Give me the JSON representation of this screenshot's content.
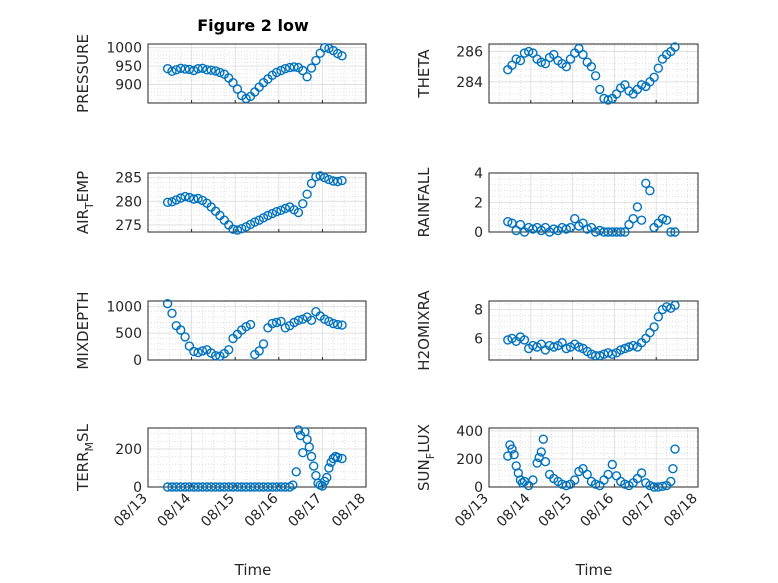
{
  "figure": {
    "title": "Figure 2 low"
  },
  "colors": {
    "marker": "#0072bd",
    "axis": "#262626",
    "grid": "#dcdcdc"
  },
  "chart_data": [
    {
      "type": "scatter",
      "ylabel_main": "PRESSURE",
      "ylabel_sub": "",
      "xlim": [
        13,
        18
      ],
      "ylim": [
        850,
        1010
      ],
      "yticks": [
        900,
        950,
        1000
      ],
      "xticks": [
        13,
        14,
        15,
        16,
        17,
        18
      ],
      "x": [
        13.45,
        13.55,
        13.65,
        13.75,
        13.85,
        13.95,
        14.05,
        14.15,
        14.25,
        14.35,
        14.45,
        14.55,
        14.65,
        14.75,
        14.85,
        14.95,
        15.05,
        15.15,
        15.25,
        15.35,
        15.45,
        15.55,
        15.65,
        15.75,
        15.85,
        15.95,
        16.05,
        16.15,
        16.25,
        16.35,
        16.45,
        16.55,
        16.65,
        16.75,
        16.85,
        16.95,
        17.05,
        17.15,
        17.25,
        17.35,
        17.45
      ],
      "y": [
        943,
        936,
        940,
        944,
        942,
        941,
        938,
        943,
        944,
        940,
        939,
        937,
        933,
        928,
        918,
        905,
        888,
        870,
        862,
        868,
        880,
        893,
        905,
        915,
        925,
        933,
        938,
        943,
        946,
        948,
        946,
        938,
        921,
        945,
        965,
        985,
        1000,
        998,
        992,
        984,
        978
      ]
    },
    {
      "type": "scatter",
      "ylabel_main": "THETA",
      "ylabel_sub": "",
      "xlim": [
        13,
        18
      ],
      "ylim": [
        282.6,
        286.5
      ],
      "yticks": [
        284,
        286
      ],
      "xticks": [
        13,
        14,
        15,
        16,
        17,
        18
      ],
      "x": [
        13.45,
        13.55,
        13.65,
        13.75,
        13.85,
        13.95,
        14.05,
        14.15,
        14.25,
        14.35,
        14.45,
        14.55,
        14.65,
        14.75,
        14.85,
        14.95,
        15.05,
        15.15,
        15.25,
        15.35,
        15.45,
        15.55,
        15.65,
        15.75,
        15.85,
        15.95,
        16.05,
        16.15,
        16.25,
        16.35,
        16.45,
        16.55,
        16.65,
        16.75,
        16.85,
        16.95,
        17.05,
        17.15,
        17.25,
        17.35,
        17.45
      ],
      "y": [
        284.8,
        285.1,
        285.5,
        285.4,
        285.9,
        286.0,
        285.9,
        285.5,
        285.3,
        285.2,
        285.6,
        285.8,
        285.4,
        285.2,
        285.0,
        285.5,
        285.9,
        286.2,
        285.8,
        285.3,
        285.0,
        284.4,
        283.5,
        282.9,
        282.8,
        282.9,
        283.2,
        283.6,
        283.8,
        283.4,
        283.2,
        283.5,
        283.8,
        283.7,
        284.0,
        284.3,
        284.9,
        285.5,
        285.8,
        286.0,
        286.3
      ]
    },
    {
      "type": "scatter",
      "ylabel_main": "AIR",
      "ylabel_sub": "T",
      "ylabel_rest": "EMP",
      "xlim": [
        13,
        18
      ],
      "ylim": [
        273.5,
        286
      ],
      "yticks": [
        275,
        280,
        285
      ],
      "xticks": [
        13,
        14,
        15,
        16,
        17,
        18
      ],
      "x": [
        13.45,
        13.55,
        13.65,
        13.75,
        13.85,
        13.95,
        14.05,
        14.15,
        14.25,
        14.35,
        14.45,
        14.55,
        14.65,
        14.75,
        14.85,
        14.95,
        15.05,
        15.15,
        15.25,
        15.35,
        15.45,
        15.55,
        15.65,
        15.75,
        15.85,
        15.95,
        16.05,
        16.15,
        16.25,
        16.35,
        16.45,
        16.55,
        16.65,
        16.75,
        16.85,
        16.95,
        17.05,
        17.15,
        17.25,
        17.35,
        17.45
      ],
      "y": [
        279.8,
        279.9,
        280.3,
        280.7,
        281.0,
        280.8,
        280.5,
        280.6,
        280.2,
        279.6,
        278.8,
        277.9,
        277.0,
        276.0,
        275.0,
        274.1,
        273.9,
        274.2,
        274.6,
        275.1,
        275.6,
        276.0,
        276.5,
        277.0,
        277.4,
        277.8,
        278.1,
        278.5,
        278.8,
        278.2,
        277.6,
        279.5,
        281.5,
        283.8,
        285.2,
        285.4,
        285.0,
        284.6,
        284.3,
        284.2,
        284.4
      ]
    },
    {
      "type": "scatter",
      "ylabel_main": "RAINFALL",
      "ylabel_sub": "",
      "xlim": [
        13,
        18
      ],
      "ylim": [
        0,
        4
      ],
      "yticks": [
        0,
        2,
        4
      ],
      "xticks": [
        13,
        14,
        15,
        16,
        17,
        18
      ],
      "x": [
        13.45,
        13.55,
        13.65,
        13.75,
        13.85,
        13.95,
        14.05,
        14.15,
        14.25,
        14.35,
        14.45,
        14.55,
        14.65,
        14.75,
        14.85,
        14.95,
        15.05,
        15.15,
        15.25,
        15.35,
        15.45,
        15.55,
        15.65,
        15.75,
        15.85,
        15.95,
        16.05,
        16.15,
        16.25,
        16.35,
        16.45,
        16.55,
        16.65,
        16.75,
        16.85,
        16.95,
        17.05,
        17.15,
        17.25,
        17.35,
        17.45
      ],
      "y": [
        0.7,
        0.6,
        0.1,
        0.5,
        0.0,
        0.3,
        0.2,
        0.3,
        0.1,
        0.3,
        0.0,
        0.2,
        0.1,
        0.3,
        0.2,
        0.3,
        0.9,
        0.4,
        0.6,
        0.2,
        0.3,
        0.0,
        0.1,
        0.0,
        0.0,
        0.0,
        0.0,
        0.0,
        0.0,
        0.5,
        0.9,
        1.7,
        0.8,
        3.3,
        2.8,
        0.3,
        0.6,
        0.9,
        0.8,
        0.0,
        0.0
      ]
    },
    {
      "type": "scatter",
      "ylabel_main": "MIXDEPTH",
      "ylabel_sub": "",
      "xlim": [
        13,
        18
      ],
      "ylim": [
        0,
        1100
      ],
      "yticks": [
        0,
        500,
        1000
      ],
      "xticks": [
        13,
        14,
        15,
        16,
        17,
        18
      ],
      "x": [
        13.45,
        13.55,
        13.65,
        13.75,
        13.85,
        13.95,
        14.05,
        14.15,
        14.25,
        14.35,
        14.45,
        14.55,
        14.65,
        14.75,
        14.85,
        14.95,
        15.05,
        15.15,
        15.25,
        15.35,
        15.45,
        15.55,
        15.65,
        15.75,
        15.85,
        15.95,
        16.05,
        16.15,
        16.25,
        16.35,
        16.45,
        16.55,
        16.65,
        16.75,
        16.85,
        16.95,
        17.05,
        17.15,
        17.25,
        17.35,
        17.45
      ],
      "y": [
        1050,
        870,
        640,
        560,
        430,
        260,
        160,
        140,
        170,
        190,
        130,
        80,
        70,
        120,
        190,
        400,
        480,
        560,
        620,
        660,
        100,
        170,
        300,
        600,
        680,
        700,
        720,
        600,
        640,
        700,
        740,
        760,
        800,
        740,
        900,
        820,
        760,
        720,
        680,
        660,
        650
      ]
    },
    {
      "type": "scatter",
      "ylabel_main": "H2OMIXRA",
      "ylabel_sub": "",
      "xlim": [
        13,
        18
      ],
      "ylim": [
        4.5,
        8.6
      ],
      "yticks": [
        6,
        8
      ],
      "xticks": [
        13,
        14,
        15,
        16,
        17,
        18
      ],
      "x": [
        13.45,
        13.55,
        13.65,
        13.75,
        13.85,
        13.95,
        14.05,
        14.15,
        14.25,
        14.35,
        14.45,
        14.55,
        14.65,
        14.75,
        14.85,
        14.95,
        15.05,
        15.15,
        15.25,
        15.35,
        15.45,
        15.55,
        15.65,
        15.75,
        15.85,
        15.95,
        16.05,
        16.15,
        16.25,
        16.35,
        16.45,
        16.55,
        16.65,
        16.75,
        16.85,
        16.95,
        17.05,
        17.15,
        17.25,
        17.35,
        17.45
      ],
      "y": [
        5.9,
        6.0,
        5.8,
        6.1,
        5.9,
        5.3,
        5.5,
        5.4,
        5.6,
        5.2,
        5.5,
        5.4,
        5.5,
        5.7,
        5.3,
        5.4,
        5.6,
        5.4,
        5.3,
        5.1,
        4.9,
        4.8,
        4.8,
        4.9,
        5.0,
        4.9,
        5.0,
        5.2,
        5.3,
        5.4,
        5.5,
        5.4,
        5.7,
        6.0,
        6.4,
        6.8,
        7.5,
        8.0,
        8.2,
        8.1,
        8.3
      ]
    },
    {
      "type": "scatter",
      "ylabel_main": "TERR",
      "ylabel_sub": "M",
      "ylabel_rest": "SL",
      "xlim": [
        13,
        18
      ],
      "ylim": [
        0,
        310
      ],
      "yticks": [
        0,
        200
      ],
      "xticks": [
        13,
        14,
        15,
        16,
        17,
        18
      ],
      "xticklabels": [
        "08/13",
        "08/14",
        "08/15",
        "08/16",
        "08/17",
        "08/18"
      ],
      "x": [
        13.45,
        13.55,
        13.65,
        13.75,
        13.85,
        13.95,
        14.05,
        14.15,
        14.25,
        14.35,
        14.45,
        14.55,
        14.65,
        14.75,
        14.85,
        14.95,
        15.05,
        15.15,
        15.25,
        15.35,
        15.45,
        15.55,
        15.65,
        15.75,
        15.85,
        15.95,
        16.05,
        16.15,
        16.25,
        16.32,
        16.4,
        16.45,
        16.5,
        16.55,
        16.6,
        16.65,
        16.7,
        16.75,
        16.8,
        16.85,
        16.9,
        16.95,
        17.0,
        17.05,
        17.1,
        17.15,
        17.2,
        17.25,
        17.3,
        17.35,
        17.45
      ],
      "y": [
        0,
        0,
        0,
        0,
        0,
        0,
        0,
        0,
        0,
        0,
        0,
        0,
        0,
        0,
        0,
        0,
        0,
        0,
        0,
        0,
        0,
        0,
        0,
        0,
        0,
        0,
        0,
        0,
        0,
        10,
        80,
        300,
        270,
        180,
        290,
        250,
        210,
        160,
        110,
        60,
        20,
        10,
        5,
        30,
        50,
        100,
        130,
        150,
        160,
        155,
        150
      ]
    },
    {
      "type": "scatter",
      "ylabel_main": "SUN",
      "ylabel_sub": "F",
      "ylabel_rest": "LUX",
      "xlim": [
        13,
        18
      ],
      "ylim": [
        0,
        420
      ],
      "yticks": [
        0,
        200,
        400
      ],
      "xticks": [
        13,
        14,
        15,
        16,
        17,
        18
      ],
      "xticklabels": [
        "08/13",
        "08/14",
        "08/15",
        "08/16",
        "08/17",
        "08/18"
      ],
      "x": [
        13.45,
        13.5,
        13.55,
        13.6,
        13.65,
        13.7,
        13.75,
        13.8,
        13.85,
        13.95,
        14.05,
        14.15,
        14.2,
        14.25,
        14.3,
        14.35,
        14.45,
        14.55,
        14.65,
        14.75,
        14.85,
        14.95,
        15.05,
        15.15,
        15.25,
        15.35,
        15.45,
        15.55,
        15.65,
        15.75,
        15.85,
        15.95,
        16.05,
        16.15,
        16.25,
        16.35,
        16.45,
        16.55,
        16.65,
        16.75,
        16.85,
        16.95,
        17.05,
        17.15,
        17.25,
        17.35,
        17.4,
        17.45
      ],
      "y": [
        220,
        300,
        270,
        230,
        150,
        100,
        50,
        30,
        40,
        10,
        50,
        170,
        210,
        250,
        340,
        180,
        90,
        60,
        40,
        20,
        10,
        20,
        50,
        110,
        130,
        90,
        40,
        20,
        10,
        50,
        90,
        160,
        80,
        40,
        20,
        10,
        30,
        60,
        100,
        30,
        10,
        0,
        0,
        5,
        10,
        40,
        130,
        270
      ]
    }
  ],
  "axes_text": {
    "xlabel": "Time"
  }
}
